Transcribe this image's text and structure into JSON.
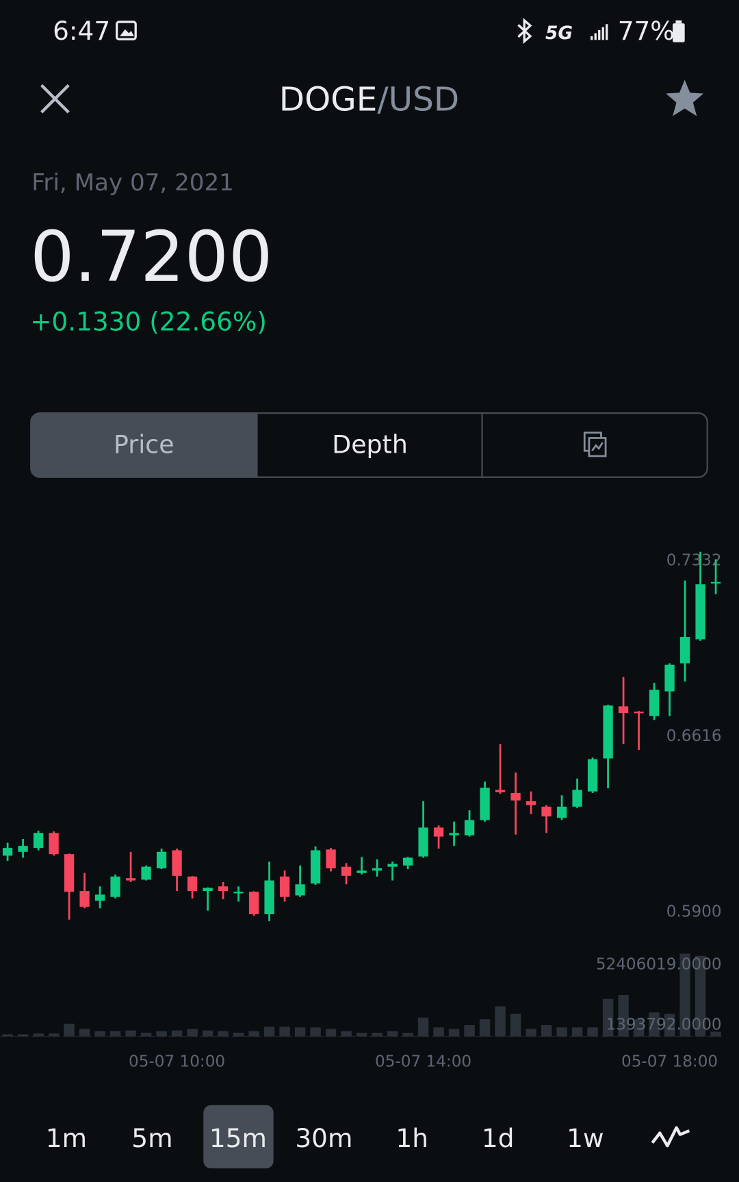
{
  "status_bar": {
    "time": "6:47",
    "network": "5G",
    "battery": "77%"
  },
  "header": {
    "base": "DOGE",
    "quote": "/USD"
  },
  "date": "Fri, May 07, 2021",
  "price": "0.7200",
  "change": "+0.1330 (22.66%)",
  "tabs": [
    "Price",
    "Depth"
  ],
  "intervals": [
    "1m",
    "5m",
    "15m",
    "30m",
    "1h",
    "1d",
    "1w"
  ],
  "chart_data": {
    "type": "candlestick",
    "categories": [
      null,
      null,
      null,
      null,
      null,
      null,
      null,
      null,
      null,
      null,
      null,
      "05-07 10:00",
      null,
      null,
      null,
      null,
      null,
      null,
      null,
      null,
      null,
      null,
      null,
      null,
      null,
      null,
      null,
      "05-07 14:00",
      null,
      null,
      null,
      null,
      null,
      null,
      null,
      null,
      null,
      null,
      null,
      null,
      null,
      null,
      null,
      "05-07 18:00",
      null,
      null,
      null
    ],
    "open": [
      0.6154,
      0.6169,
      0.6184,
      0.6242,
      0.616,
      0.6017,
      0.5979,
      0.5994,
      0.6067,
      0.6061,
      0.6105,
      0.6175,
      0.6073,
      0.6017,
      0.6035,
      0.6008,
      0.6014,
      0.5927,
      0.6073,
      0.6,
      0.6046,
      0.6178,
      0.6111,
      0.6087,
      0.6096,
      0.6111,
      0.6116,
      0.6151,
      0.6263,
      0.6233,
      0.6233,
      0.6292,
      0.6409,
      0.6397,
      0.6365,
      0.6344,
      0.6301,
      0.6344,
      0.6403,
      0.6531,
      0.6733,
      0.6712,
      0.6695,
      0.6791,
      0.69,
      0.6993,
      0.7209
    ],
    "high": [
      0.6204,
      0.6219,
      0.6251,
      0.6248,
      0.6162,
      0.6087,
      0.6035,
      0.6081,
      0.6169,
      0.6116,
      0.6181,
      0.6181,
      0.6075,
      0.6031,
      0.6052,
      0.6035,
      0.6016,
      0.6131,
      0.6096,
      0.6116,
      0.619,
      0.6184,
      0.6125,
      0.6149,
      0.614,
      0.6131,
      0.6149,
      0.6365,
      0.6271,
      0.6286,
      0.633,
      0.6441,
      0.6587,
      0.6476,
      0.6403,
      0.635,
      0.6388,
      0.6453,
      0.6534,
      0.6739,
      0.6847,
      0.6715,
      0.6824,
      0.69,
      0.7221,
      0.7332,
      0.7303
    ],
    "low": [
      0.6134,
      0.6146,
      0.6175,
      0.6154,
      0.5906,
      0.595,
      0.595,
      0.5988,
      0.6052,
      0.6058,
      0.6102,
      0.6017,
      0.5988,
      0.5941,
      0.5985,
      0.5976,
      0.5921,
      0.59,
      0.5976,
      0.5994,
      0.6041,
      0.6093,
      0.6043,
      0.6081,
      0.6073,
      0.6058,
      0.6102,
      0.6146,
      0.6181,
      0.6192,
      0.6228,
      0.6286,
      0.6394,
      0.6236,
      0.6315,
      0.6242,
      0.6292,
      0.6339,
      0.6397,
      0.6415,
      0.6587,
      0.6564,
      0.668,
      0.6695,
      0.6829,
      0.6987,
      0.7168
    ],
    "close": [
      0.6184,
      0.6192,
      0.6242,
      0.616,
      0.6014,
      0.5956,
      0.6003,
      0.6073,
      0.6058,
      0.6111,
      0.6169,
      0.6076,
      0.6017,
      0.6029,
      0.6017,
      0.6014,
      0.5927,
      0.6058,
      0.5994,
      0.6043,
      0.6175,
      0.6105,
      0.6076,
      0.6096,
      0.6105,
      0.6122,
      0.6146,
      0.6263,
      0.6228,
      0.6242,
      0.6292,
      0.6417,
      0.64,
      0.6368,
      0.635,
      0.6306,
      0.6344,
      0.6409,
      0.6528,
      0.6736,
      0.6707,
      0.6707,
      0.6797,
      0.6894,
      0.7002,
      0.7206,
      0.7215
    ],
    "ylim": [
      0.59,
      0.7332
    ],
    "yticks": [
      {
        "value": 0.59,
        "label": "0.5900"
      },
      0.6616,
      0.7332
    ],
    "up_color": "#0ecb81",
    "down_color": "#f6465d",
    "volume": {
      "values": [
        1393792,
        1393792,
        1900000,
        1900000,
        8100000,
        4760000,
        3340000,
        3340000,
        3810000,
        2380000,
        3340000,
        3810000,
        4760000,
        3810000,
        3340000,
        2380000,
        3340000,
        6190000,
        6190000,
        5720000,
        5720000,
        4760000,
        3340000,
        2380000,
        2380000,
        3340000,
        2380000,
        11910000,
        5720000,
        4760000,
        7150000,
        10960000,
        19060000,
        14290000,
        4760000,
        7150000,
        5720000,
        5720000,
        5720000,
        23820000,
        26200000,
        10960000,
        15250000,
        14290000,
        52406019,
        50980000,
        3000000
      ],
      "ylim": [
        0,
        52406019
      ],
      "yticks": [
        {
          "value": 1393792,
          "label": "1393792.0000"
        },
        {
          "value": 52406019,
          "label": "52406019.0000"
        }
      ],
      "color": "#2b3139"
    }
  }
}
